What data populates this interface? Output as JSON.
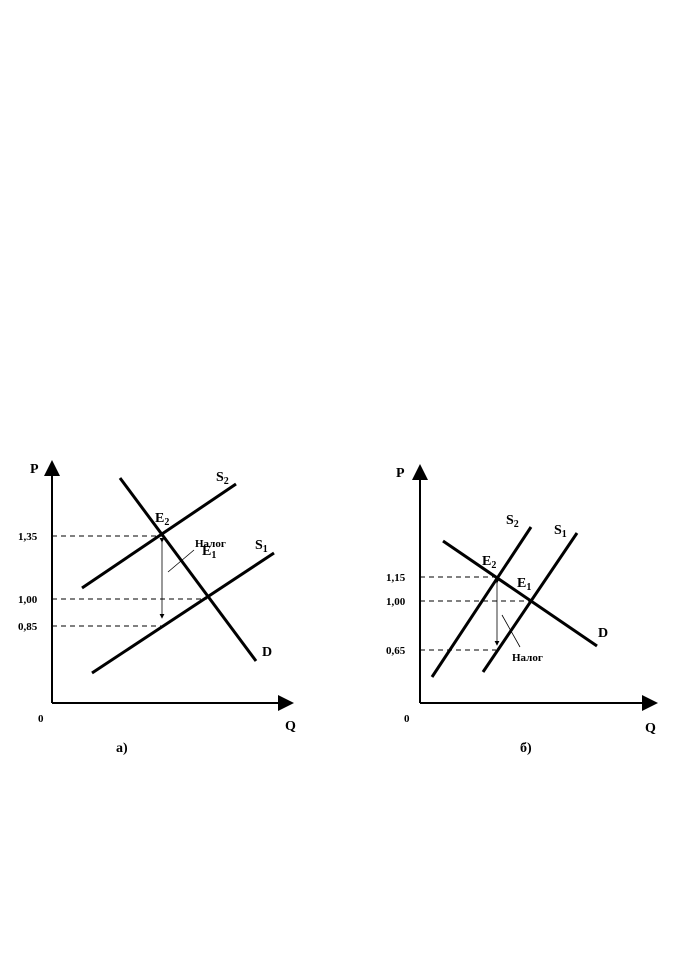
{
  "panels": [
    {
      "axis_y": "P",
      "axis_x": "Q",
      "origin": "0",
      "ticks": [
        "1,35",
        "1,00",
        "0,85"
      ],
      "curves": [
        {
          "letter": "S",
          "sub": "2"
        },
        {
          "letter": "S",
          "sub": "1"
        },
        {
          "letter": "D"
        }
      ],
      "points": [
        {
          "letter": "E",
          "sub": "2"
        },
        {
          "letter": "E",
          "sub": "1"
        }
      ],
      "tax": "Налог",
      "caption": "а)"
    },
    {
      "axis_y": "P",
      "axis_x": "Q",
      "origin": "0",
      "ticks": [
        "1,15",
        "1,00",
        "0,65"
      ],
      "curves": [
        {
          "letter": "S",
          "sub": "2"
        },
        {
          "letter": "S",
          "sub": "1"
        },
        {
          "letter": "D"
        }
      ],
      "points": [
        {
          "letter": "E",
          "sub": "2"
        },
        {
          "letter": "E",
          "sub": "1"
        }
      ],
      "tax": "Налог",
      "caption": "б)"
    }
  ]
}
